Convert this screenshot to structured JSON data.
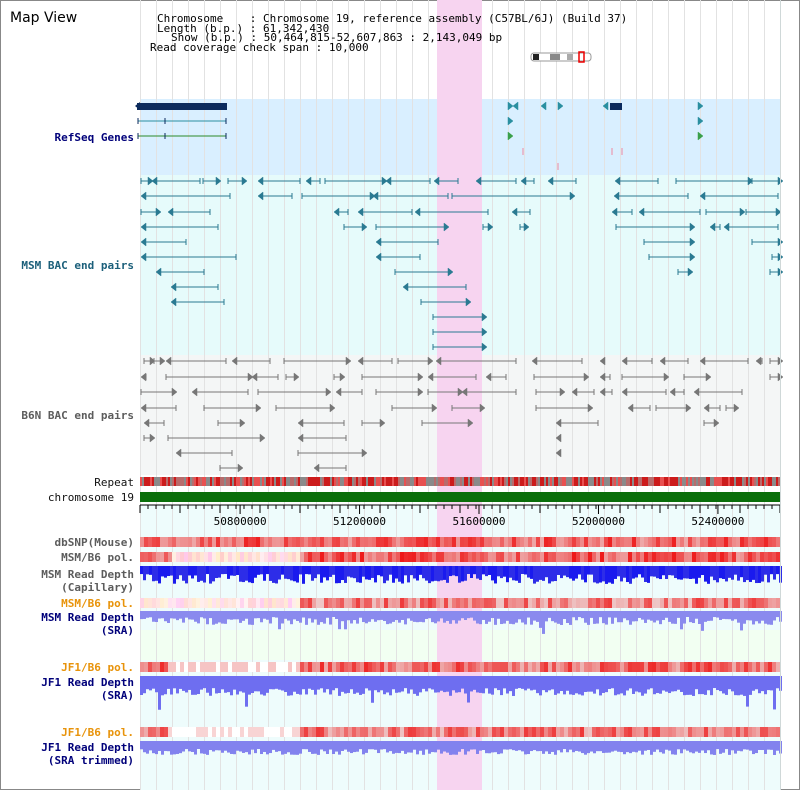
{
  "title": "Map View",
  "info": {
    "chromosome_key": "Chromosome",
    "chromosome_val": "Chromosome 19, reference assembly (C57BL/6J) (Build 37)",
    "length_key": "Length (b.p.)",
    "length_val": "61,342,430",
    "show_key": "Show (b.p.)",
    "show_val": "50,464,815-52,607,863 : 2,143,049 bp",
    "coverage_key": "Read coverage check span",
    "coverage_val": "10,000"
  },
  "tracks": {
    "refseq": "RefSeq Genes",
    "msm_bac": "MSM BAC end pairs",
    "b6n_bac": "B6N BAC end pairs",
    "repeat": "Repeat",
    "chrom": "chromosome 19",
    "dbsnp": "dbSNP(Mouse)",
    "msm_b6_pol": "MSM/B6 pol.",
    "msm_read_depth": "MSM Read Depth",
    "capillary": "(Capillary)",
    "msm_b6_pol_sra": "MSM/B6 pol.",
    "msm_read_depth_sra": "MSM Read Depth",
    "sra1": "(SRA)",
    "jf1_b6_pol": "JF1/B6 pol.",
    "jf1_read_depth": "JF1 Read Depth",
    "sra2": "(SRA)",
    "jf1_b6_pol_trim": "JF1/B6 pol.",
    "jf1_read_depth_trim": "JF1 Read Depth",
    "sra_trimmed": "(SRA trimmed)"
  },
  "axis": {
    "ticks": [
      "50800000",
      "51200000",
      "51600000",
      "52000000",
      "52400000"
    ],
    "tick_values": [
      50800000,
      51200000,
      51600000,
      52000000,
      52400000
    ],
    "range": [
      50464815,
      52607863
    ]
  },
  "colors": {
    "highlight": "#f7d4f0",
    "refseq_bg": "#d9efff",
    "bac_bg": "#e6fbfb",
    "b6n_bg": "#f4f6f6",
    "chrom_green": "#0a6e0a",
    "navy": "#0b2a5c",
    "teal": "#2a7a92",
    "grey": "#777777",
    "depth_blue": "#1a1aee",
    "depth_light": "#7c7cf0",
    "snp_red": "#ee3333"
  }
}
